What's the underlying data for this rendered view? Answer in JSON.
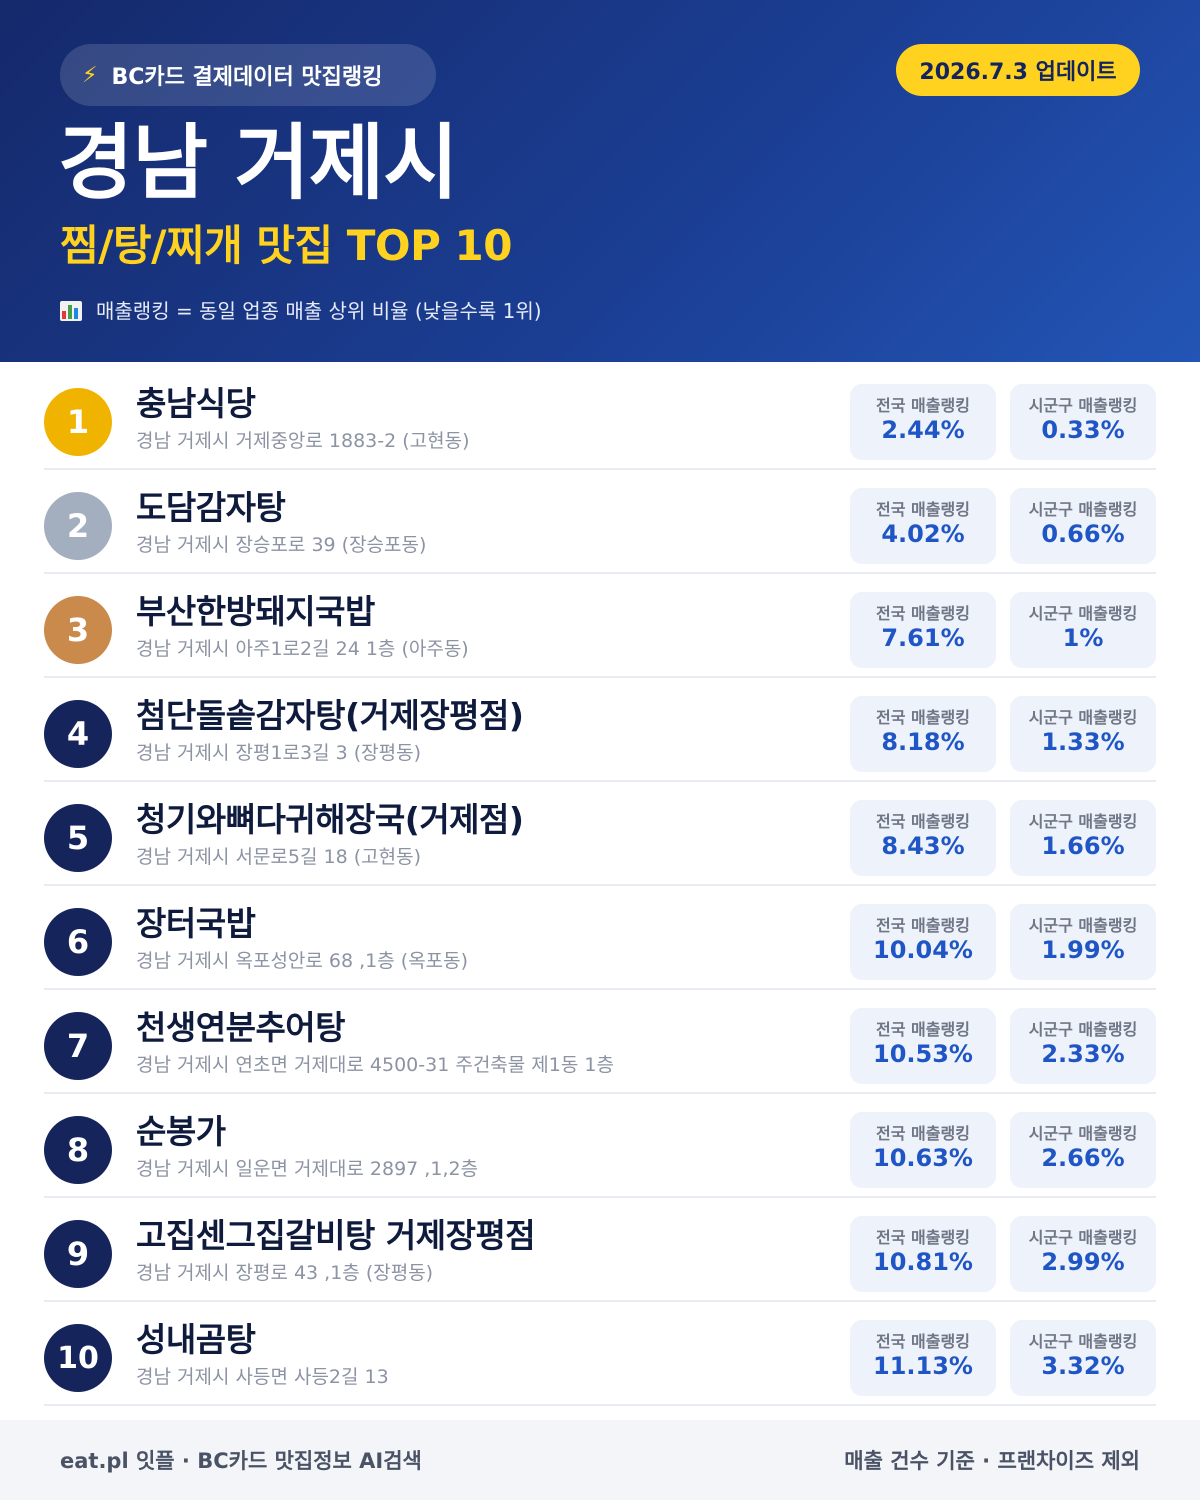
{
  "header": {
    "source_label": "BC카드 결제데이터 맛집랭킹",
    "update_label": "2026.7.3 업데이트",
    "region": "경남 거제시",
    "subtitle": "찜/탕/찌개 맛집 TOP 10",
    "legend": "매출랭킹 = 동일 업종 매출 상위 비율 (낮을수록 1위)",
    "accent_color": "#ffd21f"
  },
  "stat_labels": {
    "national": "전국 매출랭킹",
    "local": "시군구 매출랭킹"
  },
  "badge_colors": {
    "gold": "#f0b400",
    "silver": "#a3aebf",
    "bronze": "#c98a4b",
    "default": "#15245a"
  },
  "items": [
    {
      "rank": "1",
      "name": "충남식당",
      "address": "경남 거제시 거제중앙로 1883-2 (고현동)",
      "national": "2.44%",
      "local": "0.33%"
    },
    {
      "rank": "2",
      "name": "도담감자탕",
      "address": "경남 거제시 장승포로 39 (장승포동)",
      "national": "4.02%",
      "local": "0.66%"
    },
    {
      "rank": "3",
      "name": "부산한방돼지국밥",
      "address": "경남 거제시 아주1로2길 24 1층 (아주동)",
      "national": "7.61%",
      "local": "1%"
    },
    {
      "rank": "4",
      "name": "첨단돌솥감자탕(거제장평점)",
      "address": "경남 거제시 장평1로3길 3 (장평동)",
      "national": "8.18%",
      "local": "1.33%"
    },
    {
      "rank": "5",
      "name": "청기와뼈다귀해장국(거제점)",
      "address": "경남 거제시 서문로5길 18 (고현동)",
      "national": "8.43%",
      "local": "1.66%"
    },
    {
      "rank": "6",
      "name": "장터국밥",
      "address": "경남 거제시 옥포성안로 68 ,1층 (옥포동)",
      "national": "10.04%",
      "local": "1.99%"
    },
    {
      "rank": "7",
      "name": "천생연분추어탕",
      "address": "경남 거제시 연초면 거제대로 4500-31 주건축물 제1동 1층",
      "national": "10.53%",
      "local": "2.33%"
    },
    {
      "rank": "8",
      "name": "순봉가",
      "address": "경남 거제시 일운면 거제대로 2897 ,1,2층",
      "national": "10.63%",
      "local": "2.66%"
    },
    {
      "rank": "9",
      "name": "고집센그집갈비탕 거제장평점",
      "address": "경남 거제시 장평로 43 ,1층 (장평동)",
      "national": "10.81%",
      "local": "2.99%"
    },
    {
      "rank": "10",
      "name": "성내곰탕",
      "address": "경남 거제시 사등면 사등2길 13",
      "national": "11.13%",
      "local": "3.32%"
    }
  ],
  "footer": {
    "left": "eat.pl 잇플 · BC카드 맛집정보 AI검색",
    "right": "매출 건수 기준 · 프랜차이즈 제외"
  }
}
